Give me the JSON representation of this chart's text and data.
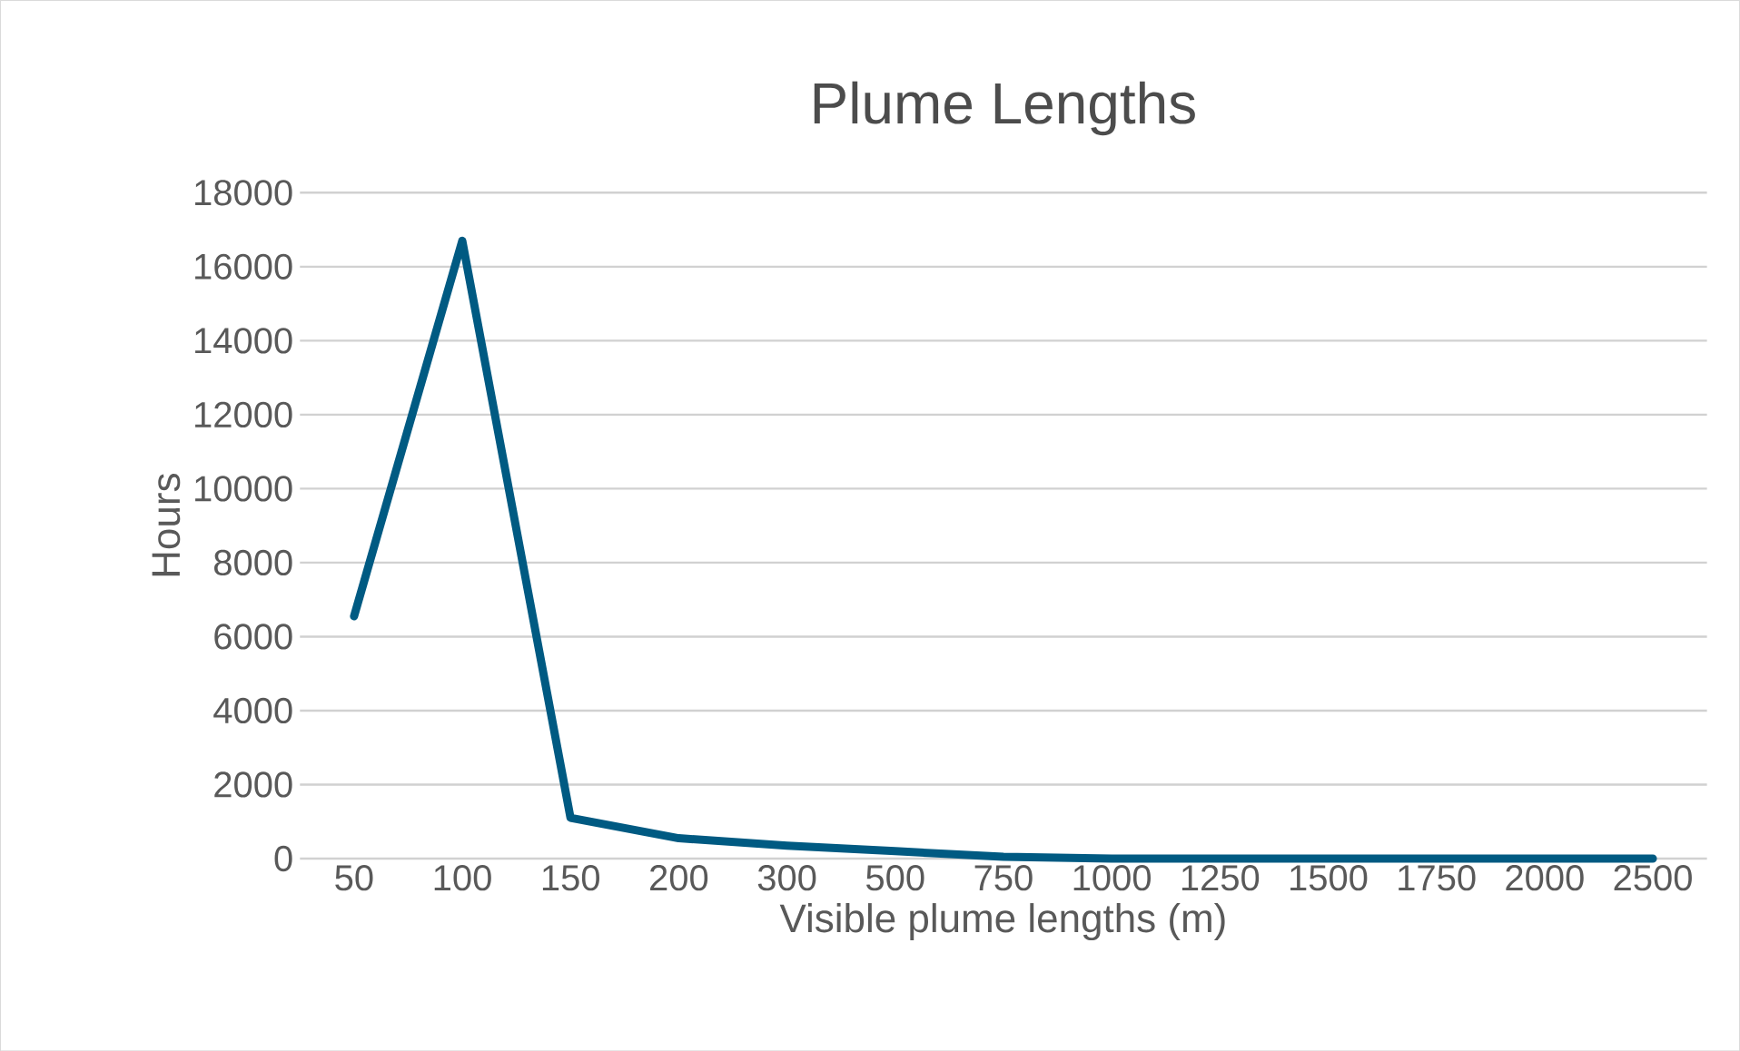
{
  "chart_data": {
    "type": "line",
    "title": "Plume Lengths",
    "xlabel": "Visible plume lengths (m)",
    "ylabel": "Hours",
    "categories": [
      "50",
      "100",
      "150",
      "200",
      "300",
      "500",
      "750",
      "1000",
      "1250",
      "1500",
      "1750",
      "2000",
      "2500"
    ],
    "series": [
      {
        "color": "#005a82",
        "values": [
          6550,
          16700,
          1100,
          550,
          350,
          200,
          50,
          0,
          0,
          0,
          0,
          0,
          0
        ]
      }
    ],
    "ylim": [
      0,
      18000
    ],
    "yticks": [
      0,
      2000,
      4000,
      6000,
      8000,
      10000,
      12000,
      14000,
      16000,
      18000
    ],
    "grid": "y",
    "marker": "none",
    "line_style": "solid"
  }
}
